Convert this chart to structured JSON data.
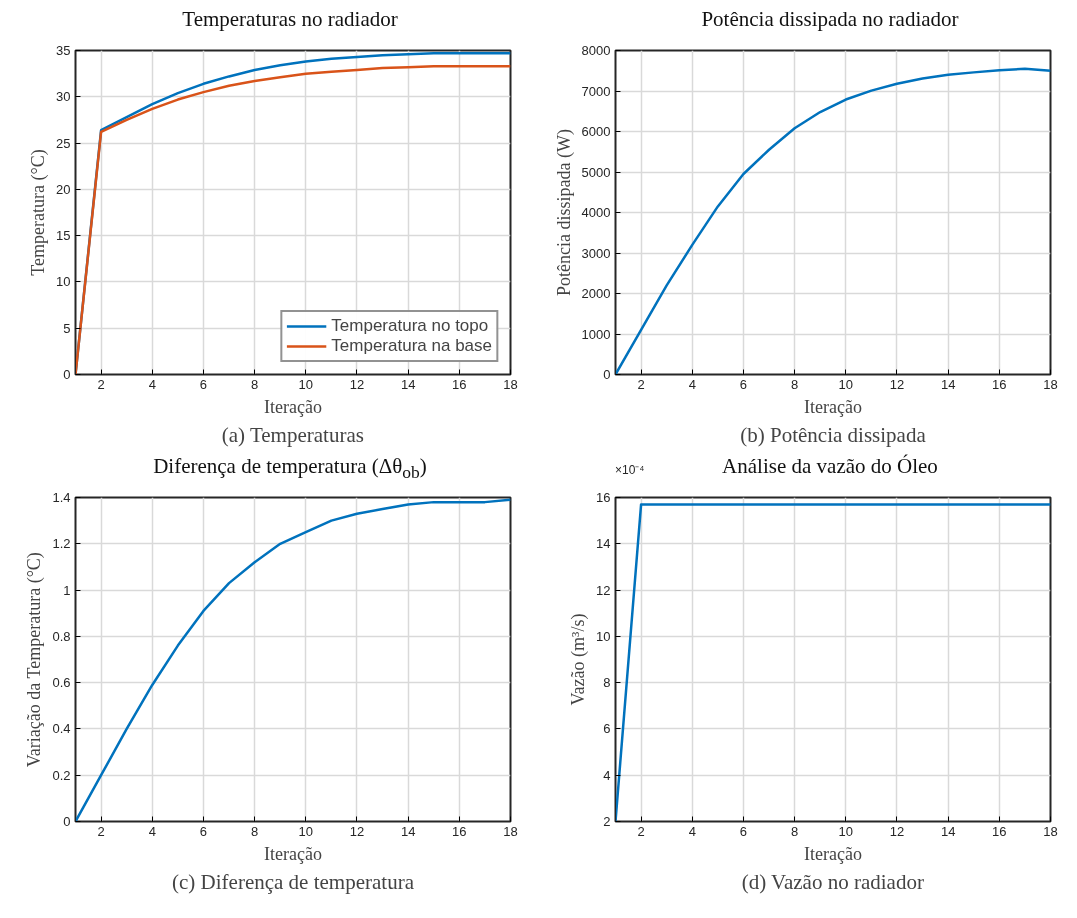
{
  "chart_data": [
    {
      "type": "line",
      "title": "Temperaturas no radiador",
      "xlabel": "Iteração",
      "ylabel": "Temperatura (°C)",
      "x": [
        1,
        2,
        3,
        4,
        5,
        6,
        7,
        8,
        9,
        10,
        11,
        12,
        13,
        14,
        15,
        16,
        17,
        18
      ],
      "series": [
        {
          "name": "Temperatura no topo",
          "color": "#0072bd",
          "values": [
            0,
            26.4,
            27.8,
            29.2,
            30.4,
            31.4,
            32.2,
            32.9,
            33.4,
            33.8,
            34.1,
            34.3,
            34.5,
            34.6,
            34.7,
            34.7,
            34.7,
            34.7
          ]
        },
        {
          "name": "Temperatura na base",
          "color": "#d95319",
          "values": [
            0,
            26.2,
            27.5,
            28.7,
            29.7,
            30.5,
            31.2,
            31.7,
            32.1,
            32.5,
            32.7,
            32.9,
            33.1,
            33.2,
            33.3,
            33.3,
            33.3,
            33.3
          ]
        }
      ],
      "xlim": [
        1,
        18
      ],
      "xticks": [
        2,
        4,
        6,
        8,
        10,
        12,
        14,
        16,
        18
      ],
      "ylim": [
        0,
        35
      ],
      "yticks": [
        0,
        5,
        10,
        15,
        20,
        25,
        30,
        35
      ],
      "grid": true,
      "legend": "bottom right",
      "annotations": [
        "(a) Temperaturas"
      ]
    },
    {
      "type": "line",
      "title": "Potência dissipada no radiador",
      "xlabel": "Iteração",
      "ylabel": "Potência dissipada (W)",
      "x": [
        1,
        2,
        3,
        4,
        5,
        6,
        7,
        8,
        9,
        10,
        11,
        12,
        13,
        14,
        15,
        16,
        17,
        18
      ],
      "series": [
        {
          "color": "#0072bd",
          "values": [
            0,
            1100,
            2200,
            3200,
            4150,
            4950,
            5550,
            6080,
            6480,
            6790,
            7010,
            7180,
            7310,
            7400,
            7460,
            7510,
            7550,
            7500
          ]
        }
      ],
      "xlim": [
        1,
        18
      ],
      "xticks": [
        2,
        4,
        6,
        8,
        10,
        12,
        14,
        16,
        18
      ],
      "ylim": [
        0,
        8000
      ],
      "yticks": [
        0,
        1000,
        2000,
        3000,
        4000,
        5000,
        6000,
        7000,
        8000
      ],
      "grid": true,
      "annotations": [
        "(b) Potência dissipada"
      ]
    },
    {
      "type": "line",
      "title": "Diferença de temperatura (Δθ$_{ob}$)",
      "xlabel": "Iteração",
      "ylabel": "Variação da Temperatura (°C)",
      "x": [
        1,
        2,
        3,
        4,
        5,
        6,
        7,
        8,
        9,
        10,
        11,
        12,
        13,
        14,
        15,
        16,
        17,
        18
      ],
      "series": [
        {
          "color": "#0072bd",
          "values": [
            0,
            0.2,
            0.4,
            0.59,
            0.76,
            0.91,
            1.03,
            1.12,
            1.2,
            1.25,
            1.3,
            1.33,
            1.35,
            1.37,
            1.38,
            1.38,
            1.38,
            1.39
          ]
        }
      ],
      "xlim": [
        1,
        18
      ],
      "xticks": [
        2,
        4,
        6,
        8,
        10,
        12,
        14,
        16,
        18
      ],
      "ylim": [
        0,
        1.4
      ],
      "yticks": [
        0,
        {
          "value": 0.2,
          "label": "0.2"
        },
        {
          "value": 0.4,
          "label": "0.4"
        },
        {
          "value": 0.6,
          "label": "0.6"
        },
        {
          "value": 0.8,
          "label": "0.8"
        },
        1,
        {
          "value": 1.2,
          "label": "1.2"
        },
        {
          "value": 1.4,
          "label": "1.4"
        }
      ],
      "grid": true,
      "annotations": [
        "(c) Diferença de temperatura"
      ]
    },
    {
      "type": "line",
      "title": "Análise da vazão do Óleo",
      "xlabel": "Iteração",
      "ylabel": "Vazão (m³/s)",
      "x": [
        1,
        2,
        3,
        4,
        5,
        6,
        7,
        8,
        9,
        10,
        11,
        12,
        13,
        14,
        15,
        16,
        17,
        18
      ],
      "series": [
        {
          "color": "#0072bd",
          "values": [
            2,
            15.7,
            15.7,
            15.7,
            15.7,
            15.7,
            15.7,
            15.7,
            15.7,
            15.7,
            15.7,
            15.7,
            15.7,
            15.7,
            15.7,
            15.7,
            15.7,
            15.7
          ]
        }
      ],
      "xlim": [
        1,
        18
      ],
      "xticks": [
        2,
        4,
        6,
        8,
        10,
        12,
        14,
        16,
        18
      ],
      "ylim": [
        2,
        16
      ],
      "yticks": [
        2,
        4,
        6,
        8,
        10,
        12,
        14,
        16
      ],
      "grid": true,
      "annotations": [
        "×10⁻⁴",
        "(d) Vazão no radiador"
      ]
    }
  ]
}
